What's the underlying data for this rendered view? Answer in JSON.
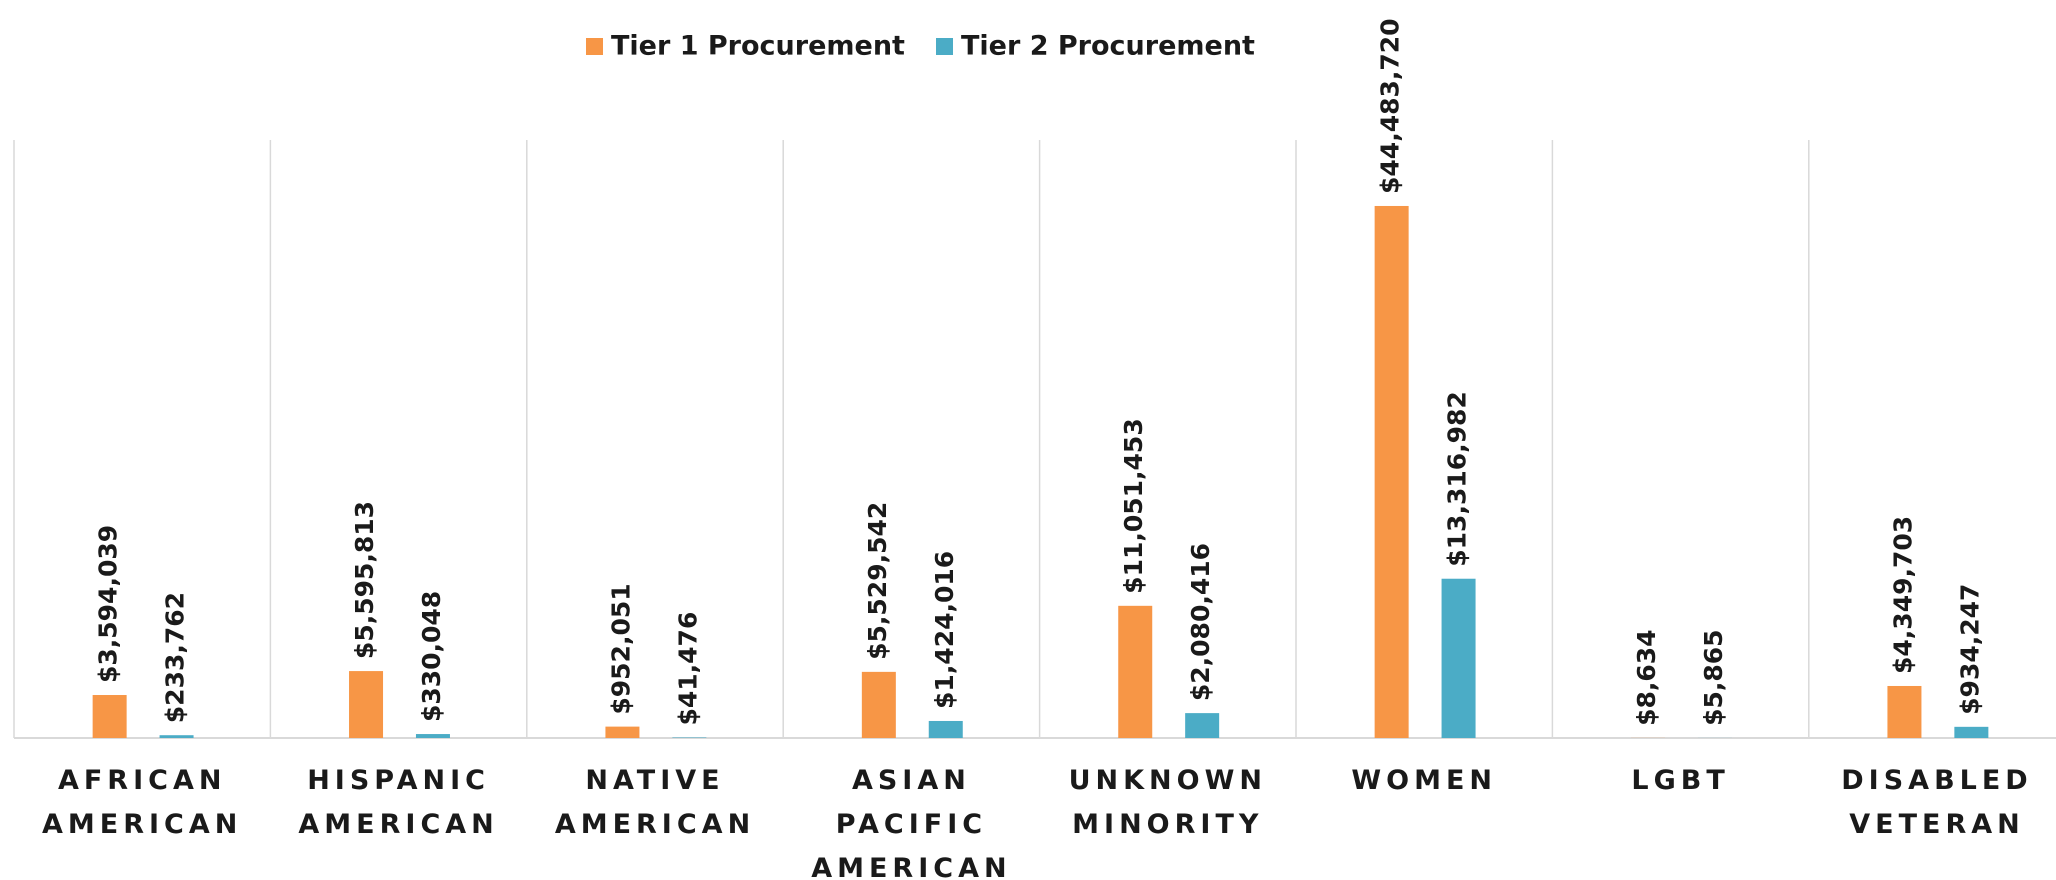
{
  "chart_data": {
    "type": "bar",
    "categories": [
      "AFRICAN AMERICAN",
      "HISPANIC AMERICAN",
      "NATIVE AMERICAN",
      "ASIAN PACIFIC AMERICAN",
      "UNKNOWN MINORITY",
      "WOMEN",
      "LGBT",
      "DISABLED VETERAN"
    ],
    "series": [
      {
        "name": "Tier 1 Procurement",
        "color": "#f79646",
        "values": [
          3594039,
          5595813,
          952051,
          5529542,
          11051453,
          44483720,
          8634,
          4349703
        ],
        "value_labels": [
          "$3,594,039",
          "$5,595,813",
          "$952,051",
          "$5,529,542",
          "$11,051,453",
          "$44,483,720",
          "$8,634",
          "$4,349,703"
        ]
      },
      {
        "name": "Tier 2 Procurement",
        "color": "#4bacc6",
        "values": [
          233762,
          330048,
          41476,
          1424016,
          2080416,
          13316982,
          5865,
          934247
        ],
        "value_labels": [
          "$233,762",
          "$330,048",
          "$41,476",
          "$1,424,016",
          "$2,080,416",
          "$13,316,982",
          "$5,865",
          "$934,247"
        ]
      }
    ],
    "ylim": [
      0,
      50000000
    ],
    "legend": "top"
  }
}
